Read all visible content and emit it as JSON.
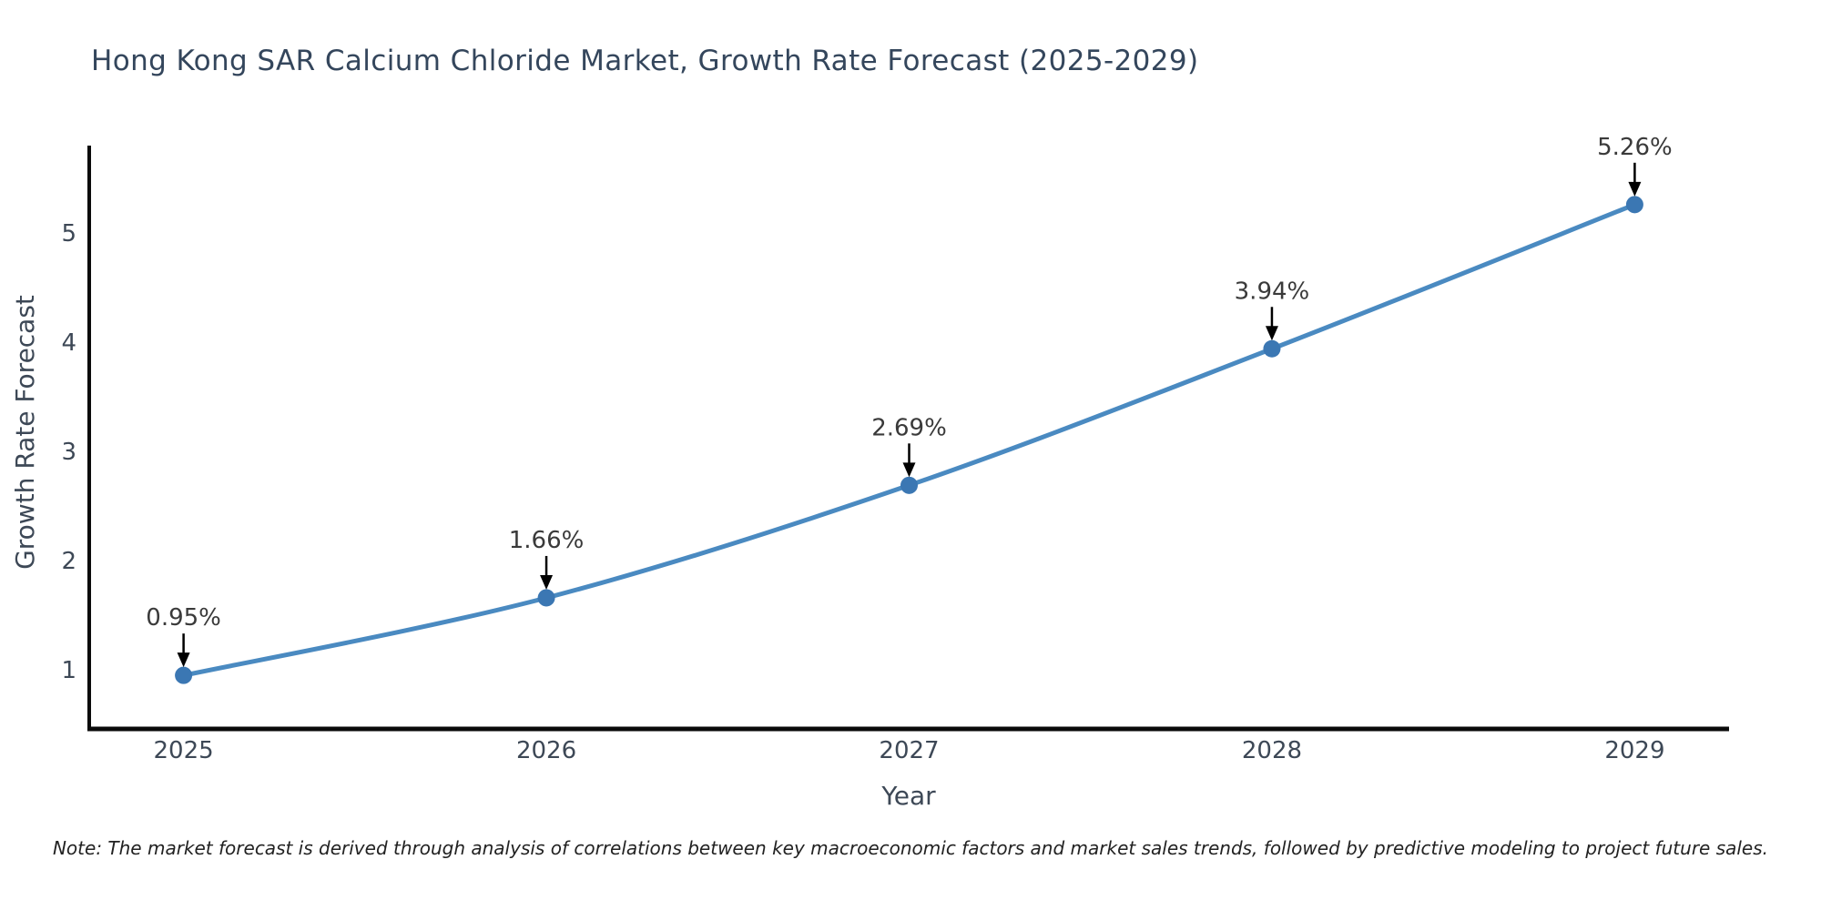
{
  "chart_data": {
    "type": "line",
    "title": "Hong Kong SAR Calcium Chloride Market, Growth Rate Forecast (2025-2029)",
    "xlabel": "Year",
    "ylabel": "Growth Rate Forecast",
    "x": [
      2025,
      2026,
      2027,
      2028,
      2029
    ],
    "values": [
      0.95,
      1.66,
      2.69,
      3.94,
      5.26
    ],
    "point_labels": [
      "0.95%",
      "1.66%",
      "2.69%",
      "3.94%",
      "5.26%"
    ],
    "yticks": [
      1,
      2,
      3,
      4,
      5
    ],
    "xlim": [
      2024.74,
      2029.26
    ],
    "ylim": [
      0.46,
      5.8
    ],
    "grid": false,
    "legend": "none",
    "note": "Note: The market forecast is derived through analysis of correlations between key macroeconomic factors and market sales trends, followed by predictive modeling to project future sales.",
    "colors": {
      "line": "#4a8ac1",
      "marker": "#3b77b3",
      "arrow": "#000000",
      "axis": "#0a0a0a",
      "title_text": "#34465c",
      "tick_text": "#3d4856",
      "annotation_text": "#3a3a3a",
      "note_text": "#222222",
      "background": "#ffffff"
    }
  }
}
